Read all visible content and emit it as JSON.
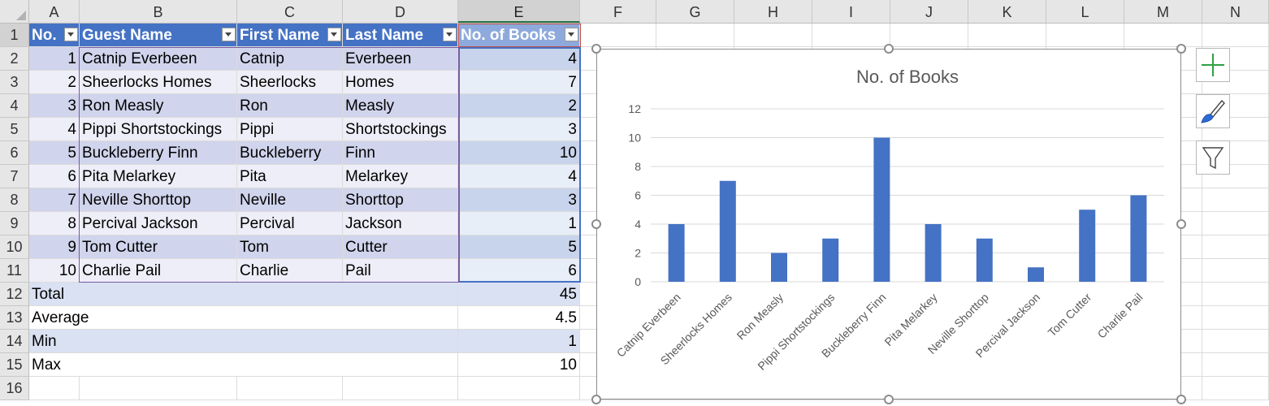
{
  "columns": [
    "A",
    "B",
    "C",
    "D",
    "E",
    "F",
    "G",
    "H",
    "I",
    "J",
    "K",
    "L",
    "M",
    "N"
  ],
  "rows": [
    "1",
    "2",
    "3",
    "4",
    "5",
    "6",
    "7",
    "8",
    "9",
    "10",
    "11",
    "12",
    "13",
    "14",
    "15",
    "16"
  ],
  "table": {
    "headers": [
      "No.",
      "Guest Name",
      "First Name",
      "Last Name",
      "No. of Books"
    ],
    "rows": [
      [
        "1",
        "Catnip Everbeen",
        "Catnip",
        "Everbeen",
        "4"
      ],
      [
        "2",
        "Sheerlocks Homes",
        "Sheerlocks",
        "Homes",
        "7"
      ],
      [
        "3",
        "Ron Measly",
        "Ron",
        "Measly",
        "2"
      ],
      [
        "4",
        "Pippi Shortstockings",
        "Pippi",
        "Shortstockings",
        "3"
      ],
      [
        "5",
        "Buckleberry Finn",
        "Buckleberry",
        "Finn",
        "10"
      ],
      [
        "6",
        "Pita Melarkey",
        "Pita",
        "Melarkey",
        "4"
      ],
      [
        "7",
        "Neville Shorttop",
        "Neville",
        "Shorttop",
        "3"
      ],
      [
        "8",
        "Percival Jackson",
        "Percival",
        "Jackson",
        "1"
      ],
      [
        "9",
        "Tom Cutter",
        "Tom",
        "Cutter",
        "5"
      ],
      [
        "10",
        "Charlie Pail",
        "Charlie",
        "Pail",
        "6"
      ]
    ]
  },
  "summary": [
    {
      "label": "Total",
      "value": "45"
    },
    {
      "label": "Average",
      "value": "4.5"
    },
    {
      "label": "Min",
      "value": "1"
    },
    {
      "label": "Max",
      "value": "10"
    }
  ],
  "side_buttons": {
    "add": "plus-icon",
    "style": "brush-icon",
    "filter": "funnel-icon"
  },
  "colors": {
    "accent": "#4472c4",
    "excel_green": "#217346"
  },
  "chart_data": {
    "type": "bar",
    "title": "No. of Books",
    "categories": [
      "Catnip Everbeen",
      "Sheerlocks Homes",
      "Ron Measly",
      "Pippi Shortstockings",
      "Buckleberry Finn",
      "Pita Melarkey",
      "Neville Shorttop",
      "Percival Jackson",
      "Tom Cutter",
      "Charlie Pail"
    ],
    "values": [
      4,
      7,
      2,
      3,
      10,
      4,
      3,
      1,
      5,
      6
    ],
    "yticks": [
      "0",
      "2",
      "4",
      "6",
      "8",
      "10",
      "12"
    ],
    "ylim": [
      0,
      12
    ],
    "grid": true,
    "bar_color": "#4472c4",
    "legend": "none"
  }
}
